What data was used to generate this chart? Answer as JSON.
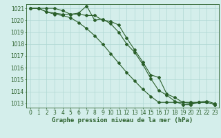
{
  "x": [
    0,
    1,
    2,
    3,
    4,
    5,
    6,
    7,
    8,
    9,
    10,
    11,
    12,
    13,
    14,
    15,
    16,
    17,
    18,
    19,
    20,
    21,
    22,
    23
  ],
  "line1": [
    1021.0,
    1021.0,
    1020.7,
    1020.6,
    1020.5,
    1020.5,
    1020.6,
    1021.2,
    1020.0,
    1020.1,
    1019.7,
    1019.0,
    1018.0,
    1017.3,
    1016.3,
    1015.1,
    1014.1,
    1013.7,
    1013.2,
    1012.9,
    1012.9,
    1013.1,
    1013.2,
    1013.0
  ],
  "line2": [
    1021.0,
    1021.0,
    1020.7,
    1020.5,
    1020.4,
    1020.2,
    1019.8,
    1019.3,
    1018.7,
    1018.0,
    1017.2,
    1016.4,
    1015.6,
    1014.9,
    1014.2,
    1013.6,
    1013.1,
    1013.1,
    1013.1,
    1013.1,
    1013.1,
    1013.1,
    1013.1,
    1012.9
  ],
  "line3": [
    1021.0,
    1021.0,
    1021.0,
    1021.0,
    1020.8,
    1020.5,
    1020.5,
    1020.4,
    1020.4,
    1020.0,
    1019.9,
    1019.6,
    1018.5,
    1017.5,
    1016.5,
    1015.4,
    1015.2,
    1013.8,
    1013.5,
    1013.1,
    1013.0,
    1013.1,
    1013.1,
    1012.9
  ],
  "bg_color": "#d4eeeb",
  "grid_color": "#b0d8d4",
  "line_color": "#2a5f2a",
  "ylabel_min": 1013,
  "ylabel_max": 1021,
  "xlabel": "Graphe pression niveau de la mer (hPa)",
  "tick_fontsize": 5.5,
  "xlabel_fontsize": 6.5,
  "marker_size": 2.0,
  "linewidth": 0.8
}
